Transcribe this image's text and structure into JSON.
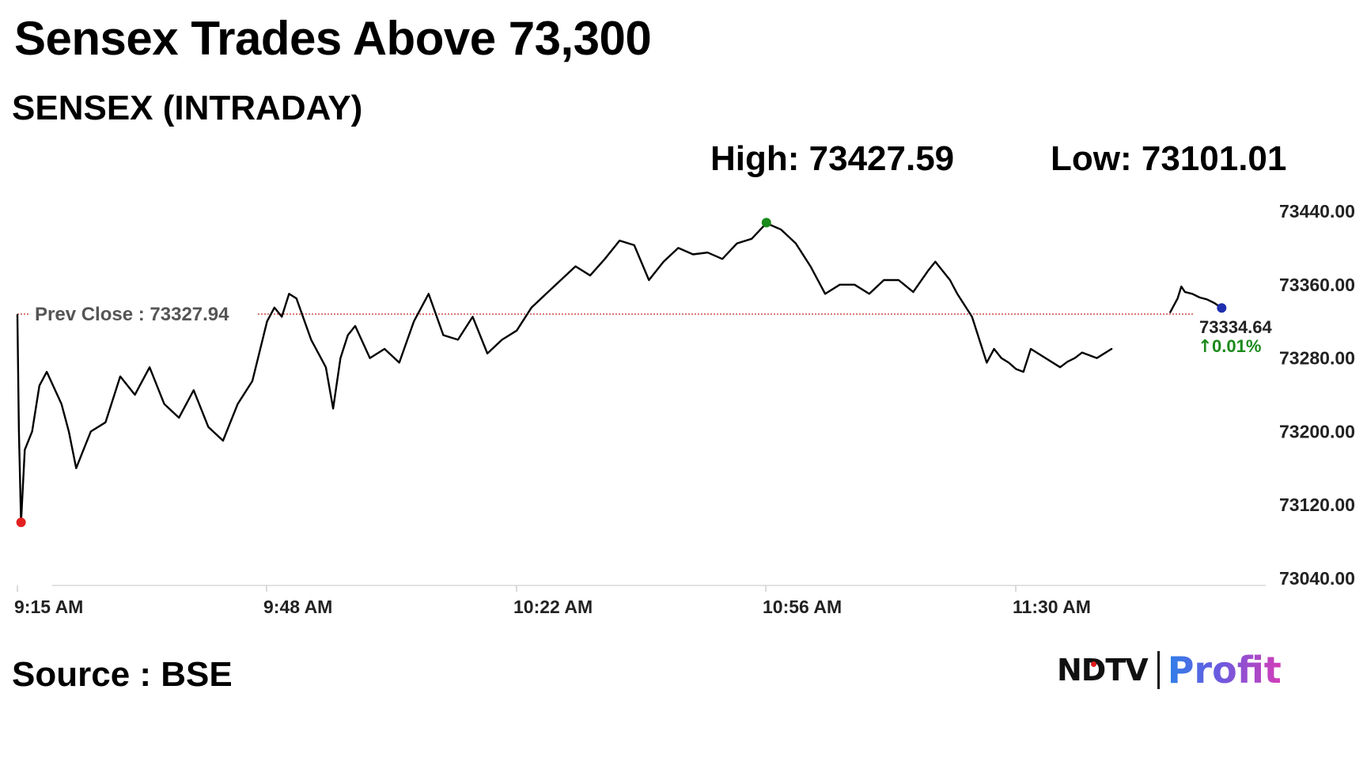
{
  "headline": "Sensex Trades Above 73,300",
  "subtitle": "SENSEX (INTRADAY)",
  "stats": {
    "high_label": "High: 73427.59",
    "low_label": "Low: 73101.01"
  },
  "source": "Source : BSE",
  "logo": {
    "left": "NDTV",
    "right": "Profit"
  },
  "colors": {
    "line": "#000000",
    "prev_close": "#c62828",
    "up": "#1a8a1a",
    "high_marker": "#1a8a1a",
    "low_marker": "#e32020",
    "last_marker": "#1f2fb0"
  },
  "chart_data": {
    "type": "line",
    "title": "SENSEX (INTRADAY)",
    "xlabel": "",
    "ylabel": "",
    "x_ticks": [
      "9:15 AM",
      "9:48 AM",
      "10:22 AM",
      "10:56 AM",
      "11:30 AM"
    ],
    "y_ticks": [
      "73440.00",
      "73360.00",
      "73280.00",
      "73200.00",
      "73120.00",
      "73040.00"
    ],
    "ylim": [
      73040,
      73440
    ],
    "xlim_minutes_after_open": [
      0,
      170
    ],
    "grid": false,
    "prev_close": {
      "label": "Prev Close : 73327.94",
      "value": 73327.94
    },
    "last": {
      "value": 73334.64,
      "value_label": "73334.64",
      "change_label": "0.01%",
      "direction": "up"
    },
    "high_point": {
      "x": 102,
      "y": 73427.59
    },
    "low_point": {
      "x": 0.5,
      "y": 73101.01
    },
    "series": [
      {
        "x": [
          0,
          0.2,
          0.5,
          1,
          2,
          3,
          4,
          6,
          7,
          8,
          9,
          10,
          12,
          14,
          16,
          18,
          20,
          22,
          24,
          26,
          28,
          30,
          32,
          34,
          35,
          36,
          37,
          38,
          40,
          42,
          43,
          44,
          45,
          46,
          48,
          50,
          52,
          54,
          56,
          58,
          60,
          62,
          64,
          66,
          68,
          70,
          72,
          74,
          76,
          78,
          80,
          82,
          84,
          86,
          88,
          90,
          92,
          94,
          96,
          98,
          100,
          102,
          104,
          106,
          108,
          110,
          112,
          114,
          116,
          118,
          120,
          122,
          124,
          125,
          126,
          127,
          128,
          130,
          132,
          133,
          134,
          135,
          136,
          137,
          138,
          142,
          143,
          144,
          145,
          146,
          147,
          148,
          149
        ],
        "y": [
          73327,
          73200,
          73101,
          73180,
          73200,
          73250,
          73265,
          73230,
          73200,
          73160,
          73180,
          73200,
          73210,
          73260,
          73240,
          73270,
          73230,
          73215,
          73245,
          73205,
          73190,
          73230,
          73255,
          73320,
          73335,
          73325,
          73350,
          73345,
          73300,
          73270,
          73225,
          73280,
          73305,
          73315,
          73280,
          73290,
          73275,
          73320,
          73350,
          73305,
          73300,
          73325,
          73285,
          73300,
          73310,
          73335,
          73350,
          73365,
          73380,
          73370,
          73388,
          73408,
          73403,
          73365,
          73385,
          73400,
          73393,
          73395,
          73388,
          73405,
          73410,
          73427,
          73420,
          73405,
          73380,
          73350,
          73360,
          73360,
          73350,
          73365,
          73365,
          73352,
          73375,
          73385,
          73375,
          73365,
          73350,
          73325,
          73275,
          73290,
          73280,
          73275,
          73268,
          73265,
          73290,
          73270,
          73276,
          73280,
          73286,
          73283,
          73280,
          73285,
          73290
        ]
      },
      {
        "x": [
          157,
          158,
          158.5,
          159,
          160,
          161,
          162,
          163,
          164
        ],
        "y": [
          73330,
          73345,
          73358,
          73352,
          73350,
          73346,
          73344,
          73340,
          73334.64
        ]
      }
    ]
  }
}
